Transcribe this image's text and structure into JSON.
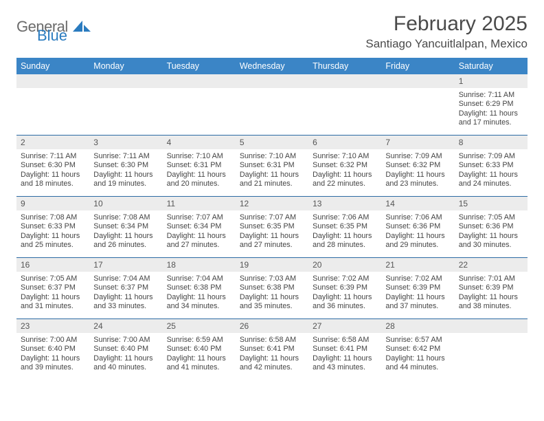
{
  "brand": {
    "text1": "General",
    "text2": "Blue",
    "shape_color": "#2a7bbf"
  },
  "title": "February 2025",
  "location": "Santiago Yancuitlalpan, Mexico",
  "header_bg": "#3b85c6",
  "row_divider": "#2b6aa3",
  "daynum_bg": "#ececec",
  "weekdays": [
    "Sunday",
    "Monday",
    "Tuesday",
    "Wednesday",
    "Thursday",
    "Friday",
    "Saturday"
  ],
  "weeks": [
    [
      {
        "n": "",
        "lines": []
      },
      {
        "n": "",
        "lines": []
      },
      {
        "n": "",
        "lines": []
      },
      {
        "n": "",
        "lines": []
      },
      {
        "n": "",
        "lines": []
      },
      {
        "n": "",
        "lines": []
      },
      {
        "n": "1",
        "lines": [
          "Sunrise: 7:11 AM",
          "Sunset: 6:29 PM",
          "Daylight: 11 hours and 17 minutes."
        ]
      }
    ],
    [
      {
        "n": "2",
        "lines": [
          "Sunrise: 7:11 AM",
          "Sunset: 6:30 PM",
          "Daylight: 11 hours and 18 minutes."
        ]
      },
      {
        "n": "3",
        "lines": [
          "Sunrise: 7:11 AM",
          "Sunset: 6:30 PM",
          "Daylight: 11 hours and 19 minutes."
        ]
      },
      {
        "n": "4",
        "lines": [
          "Sunrise: 7:10 AM",
          "Sunset: 6:31 PM",
          "Daylight: 11 hours and 20 minutes."
        ]
      },
      {
        "n": "5",
        "lines": [
          "Sunrise: 7:10 AM",
          "Sunset: 6:31 PM",
          "Daylight: 11 hours and 21 minutes."
        ]
      },
      {
        "n": "6",
        "lines": [
          "Sunrise: 7:10 AM",
          "Sunset: 6:32 PM",
          "Daylight: 11 hours and 22 minutes."
        ]
      },
      {
        "n": "7",
        "lines": [
          "Sunrise: 7:09 AM",
          "Sunset: 6:32 PM",
          "Daylight: 11 hours and 23 minutes."
        ]
      },
      {
        "n": "8",
        "lines": [
          "Sunrise: 7:09 AM",
          "Sunset: 6:33 PM",
          "Daylight: 11 hours and 24 minutes."
        ]
      }
    ],
    [
      {
        "n": "9",
        "lines": [
          "Sunrise: 7:08 AM",
          "Sunset: 6:33 PM",
          "Daylight: 11 hours and 25 minutes."
        ]
      },
      {
        "n": "10",
        "lines": [
          "Sunrise: 7:08 AM",
          "Sunset: 6:34 PM",
          "Daylight: 11 hours and 26 minutes."
        ]
      },
      {
        "n": "11",
        "lines": [
          "Sunrise: 7:07 AM",
          "Sunset: 6:34 PM",
          "Daylight: 11 hours and 27 minutes."
        ]
      },
      {
        "n": "12",
        "lines": [
          "Sunrise: 7:07 AM",
          "Sunset: 6:35 PM",
          "Daylight: 11 hours and 27 minutes."
        ]
      },
      {
        "n": "13",
        "lines": [
          "Sunrise: 7:06 AM",
          "Sunset: 6:35 PM",
          "Daylight: 11 hours and 28 minutes."
        ]
      },
      {
        "n": "14",
        "lines": [
          "Sunrise: 7:06 AM",
          "Sunset: 6:36 PM",
          "Daylight: 11 hours and 29 minutes."
        ]
      },
      {
        "n": "15",
        "lines": [
          "Sunrise: 7:05 AM",
          "Sunset: 6:36 PM",
          "Daylight: 11 hours and 30 minutes."
        ]
      }
    ],
    [
      {
        "n": "16",
        "lines": [
          "Sunrise: 7:05 AM",
          "Sunset: 6:37 PM",
          "Daylight: 11 hours and 31 minutes."
        ]
      },
      {
        "n": "17",
        "lines": [
          "Sunrise: 7:04 AM",
          "Sunset: 6:37 PM",
          "Daylight: 11 hours and 33 minutes."
        ]
      },
      {
        "n": "18",
        "lines": [
          "Sunrise: 7:04 AM",
          "Sunset: 6:38 PM",
          "Daylight: 11 hours and 34 minutes."
        ]
      },
      {
        "n": "19",
        "lines": [
          "Sunrise: 7:03 AM",
          "Sunset: 6:38 PM",
          "Daylight: 11 hours and 35 minutes."
        ]
      },
      {
        "n": "20",
        "lines": [
          "Sunrise: 7:02 AM",
          "Sunset: 6:39 PM",
          "Daylight: 11 hours and 36 minutes."
        ]
      },
      {
        "n": "21",
        "lines": [
          "Sunrise: 7:02 AM",
          "Sunset: 6:39 PM",
          "Daylight: 11 hours and 37 minutes."
        ]
      },
      {
        "n": "22",
        "lines": [
          "Sunrise: 7:01 AM",
          "Sunset: 6:39 PM",
          "Daylight: 11 hours and 38 minutes."
        ]
      }
    ],
    [
      {
        "n": "23",
        "lines": [
          "Sunrise: 7:00 AM",
          "Sunset: 6:40 PM",
          "Daylight: 11 hours and 39 minutes."
        ]
      },
      {
        "n": "24",
        "lines": [
          "Sunrise: 7:00 AM",
          "Sunset: 6:40 PM",
          "Daylight: 11 hours and 40 minutes."
        ]
      },
      {
        "n": "25",
        "lines": [
          "Sunrise: 6:59 AM",
          "Sunset: 6:40 PM",
          "Daylight: 11 hours and 41 minutes."
        ]
      },
      {
        "n": "26",
        "lines": [
          "Sunrise: 6:58 AM",
          "Sunset: 6:41 PM",
          "Daylight: 11 hours and 42 minutes."
        ]
      },
      {
        "n": "27",
        "lines": [
          "Sunrise: 6:58 AM",
          "Sunset: 6:41 PM",
          "Daylight: 11 hours and 43 minutes."
        ]
      },
      {
        "n": "28",
        "lines": [
          "Sunrise: 6:57 AM",
          "Sunset: 6:42 PM",
          "Daylight: 11 hours and 44 minutes."
        ]
      },
      {
        "n": "",
        "lines": []
      }
    ]
  ]
}
